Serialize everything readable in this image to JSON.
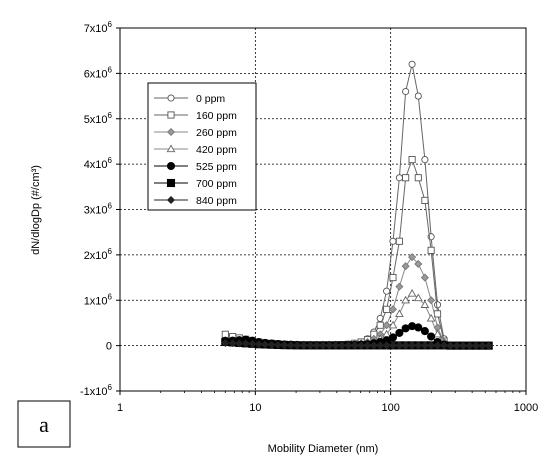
{
  "panel_label": "a",
  "chart_data": {
    "type": "line",
    "xlabel": "Mobility Diameter (nm)",
    "ylabel": "dN/dlogDp (#/cm³)",
    "xscale": "log",
    "xlim": [
      1,
      1000
    ],
    "ylim": [
      -1000000,
      7000000
    ],
    "x_ticks": [
      1,
      10,
      100,
      1000
    ],
    "x_tick_labels": [
      "1",
      "10",
      "100",
      "1000"
    ],
    "y_ticks": [
      -1000000,
      0,
      1000000,
      2000000,
      3000000,
      4000000,
      5000000,
      6000000,
      7000000
    ],
    "y_tick_labels": [
      {
        "base": "-1x10",
        "exp": "6"
      },
      {
        "base": "0",
        "exp": ""
      },
      {
        "base": "1x10",
        "exp": "6"
      },
      {
        "base": "2x10",
        "exp": "6"
      },
      {
        "base": "3x10",
        "exp": "6"
      },
      {
        "base": "4x10",
        "exp": "6"
      },
      {
        "base": "5x10",
        "exp": "6"
      },
      {
        "base": "6x10",
        "exp": "6"
      },
      {
        "base": "7x10",
        "exp": "6"
      }
    ],
    "grid": true,
    "legend_position": "upper-left",
    "x": [
      6.0,
      6.8,
      7.6,
      8.5,
      9.5,
      10.6,
      11.8,
      13.2,
      14.7,
      16.4,
      18.3,
      20.4,
      22.8,
      25.5,
      28.4,
      31.6,
      35.2,
      39.2,
      43.7,
      48.7,
      54.3,
      60.5,
      67.4,
      75.1,
      83.7,
      93.3,
      104,
      116,
      129,
      144,
      160,
      179,
      199,
      222,
      248,
      276,
      308,
      343,
      383,
      427,
      476,
      530
    ],
    "series": [
      {
        "name": "0 ppm",
        "marker": "open-circle",
        "values": [
          150000,
          140000,
          130000,
          120000,
          100000,
          80000,
          60000,
          50000,
          40000,
          30000,
          20000,
          15000,
          10000,
          10000,
          10000,
          10000,
          10000,
          15000,
          20000,
          30000,
          50000,
          80000,
          150000,
          300000,
          600000,
          1200000,
          2300000,
          3700000,
          5600000,
          6200000,
          5500000,
          4100000,
          2400000,
          900000,
          150000,
          0,
          0,
          0,
          0,
          0,
          0,
          0
        ]
      },
      {
        "name": "160 ppm",
        "marker": "open-square",
        "values": [
          250000,
          200000,
          170000,
          140000,
          110000,
          80000,
          60000,
          50000,
          40000,
          30000,
          20000,
          15000,
          10000,
          10000,
          10000,
          10000,
          10000,
          15000,
          20000,
          30000,
          50000,
          80000,
          130000,
          250000,
          450000,
          800000,
          1500000,
          2300000,
          3700000,
          4100000,
          3700000,
          3200000,
          2100000,
          700000,
          100000,
          0,
          0,
          0,
          0,
          0,
          0,
          0
        ]
      },
      {
        "name": "260 ppm",
        "marker": "gray-diamond",
        "values": [
          120000,
          110000,
          100000,
          90000,
          80000,
          60000,
          50000,
          40000,
          30000,
          20000,
          15000,
          10000,
          10000,
          10000,
          10000,
          10000,
          10000,
          10000,
          15000,
          20000,
          30000,
          50000,
          80000,
          150000,
          250000,
          450000,
          800000,
          1300000,
          1750000,
          1950000,
          1800000,
          1500000,
          1000000,
          400000,
          80000,
          0,
          0,
          0,
          0,
          0,
          0,
          0
        ]
      },
      {
        "name": "420 ppm",
        "marker": "open-triangle",
        "values": [
          110000,
          100000,
          90000,
          80000,
          70000,
          55000,
          45000,
          35000,
          25000,
          20000,
          15000,
          10000,
          10000,
          10000,
          10000,
          10000,
          10000,
          10000,
          10000,
          15000,
          20000,
          30000,
          50000,
          80000,
          150000,
          250000,
          450000,
          700000,
          1000000,
          1150000,
          1050000,
          900000,
          600000,
          250000,
          50000,
          0,
          0,
          0,
          0,
          0,
          0,
          0
        ]
      },
      {
        "name": "525 ppm",
        "marker": "filled-circle",
        "values": [
          100000,
          110000,
          120000,
          130000,
          110000,
          80000,
          60000,
          45000,
          35000,
          25000,
          20000,
          15000,
          10000,
          10000,
          10000,
          10000,
          10000,
          10000,
          10000,
          10000,
          15000,
          20000,
          30000,
          50000,
          80000,
          120000,
          180000,
          280000,
          380000,
          430000,
          400000,
          320000,
          200000,
          80000,
          20000,
          0,
          0,
          0,
          0,
          0,
          0,
          0
        ]
      },
      {
        "name": "700 ppm",
        "marker": "filled-square",
        "values": [
          80000,
          70000,
          60000,
          50000,
          40000,
          30000,
          25000,
          20000,
          15000,
          10000,
          8000,
          6000,
          5000,
          5000,
          5000,
          5000,
          5000,
          5000,
          5000,
          5000,
          5000,
          5000,
          5000,
          5000,
          5000,
          5000,
          5000,
          5000,
          5000,
          5000,
          5000,
          5000,
          5000,
          5000,
          5000,
          0,
          0,
          0,
          0,
          0,
          0,
          0
        ]
      },
      {
        "name": "840 ppm",
        "marker": "filled-diamond",
        "values": [
          60000,
          55000,
          50000,
          45000,
          40000,
          30000,
          25000,
          20000,
          15000,
          10000,
          8000,
          6000,
          5000,
          5000,
          5000,
          5000,
          5000,
          5000,
          5000,
          5000,
          5000,
          5000,
          5000,
          5000,
          5000,
          5000,
          5000,
          5000,
          5000,
          5000,
          5000,
          5000,
          5000,
          5000,
          5000,
          0,
          0,
          0,
          0,
          0,
          0,
          0
        ]
      }
    ]
  }
}
